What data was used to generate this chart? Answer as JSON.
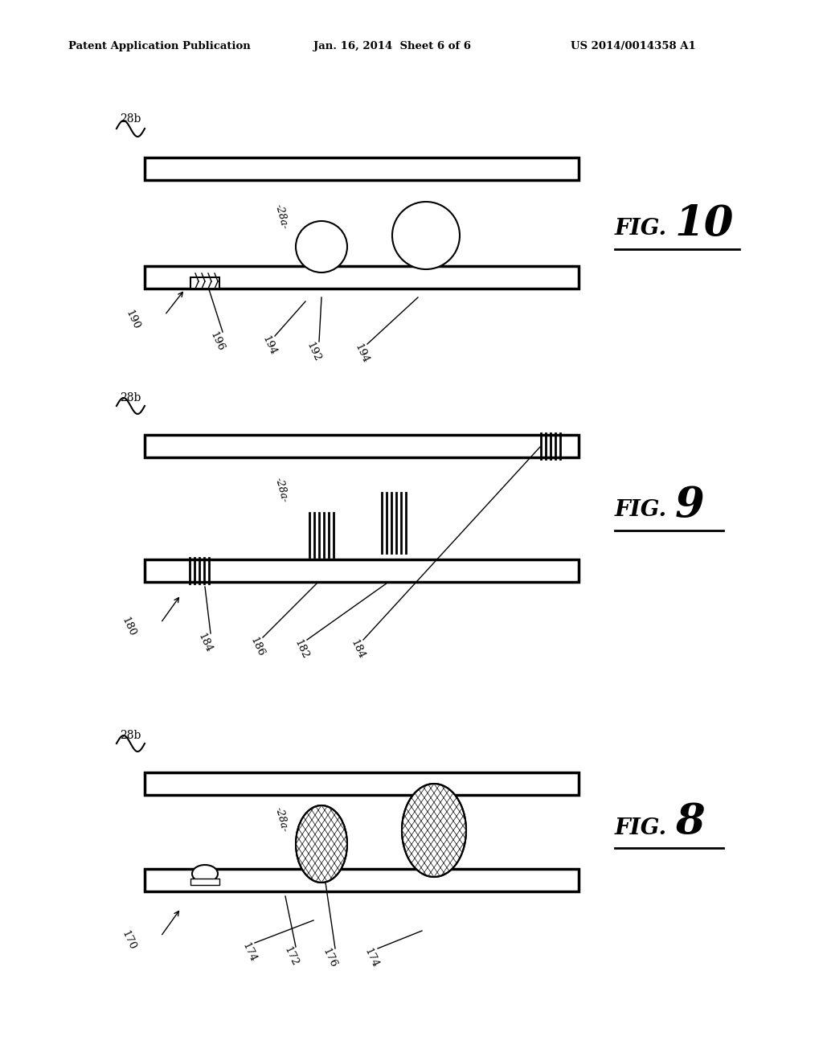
{
  "bg_color": "#ffffff",
  "header_text": "Patent Application Publication",
  "header_date": "Jan. 16, 2014  Sheet 6 of 6",
  "header_patent": "US 2014/0014358 A1",
  "fig10_label": "FIG. 10",
  "fig9_label": "FIG. 9",
  "fig8_label": "FIG. 8"
}
